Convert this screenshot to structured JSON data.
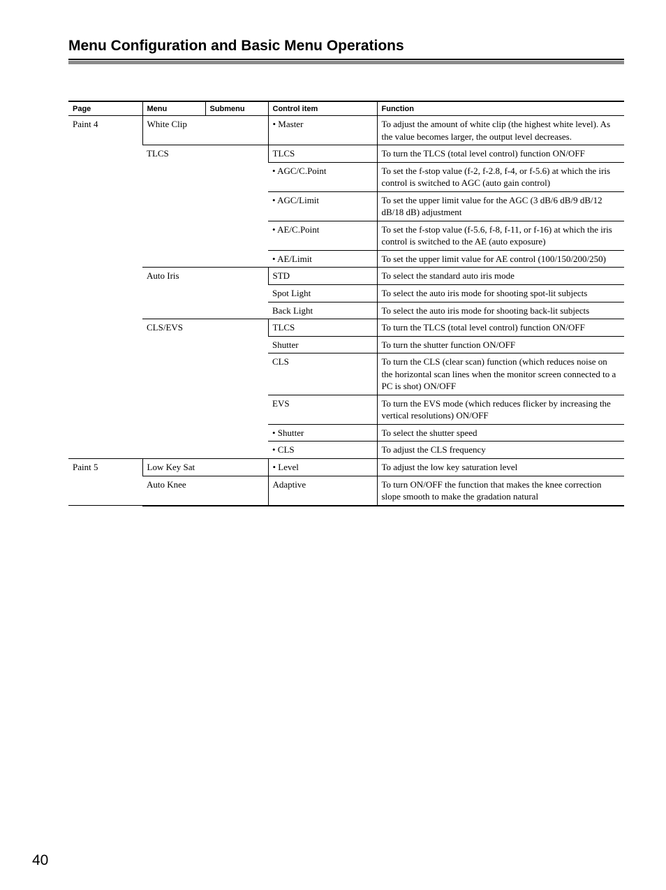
{
  "title": "Menu Configuration and Basic Menu Operations",
  "page_number": "40",
  "headers": {
    "page": "Page",
    "menu": "Menu",
    "submenu": "Submenu",
    "control": "Control item",
    "function": "Function"
  },
  "rows": [
    {
      "page": "Paint 4",
      "menu": "White Clip",
      "control": "• Master",
      "function": "To adjust the amount of white clip (the highest white level). As the value becomes larger, the output level decreases."
    },
    {
      "page": "",
      "menu": "TLCS",
      "control": "TLCS",
      "function": "To turn the TLCS (total level control) function ON/OFF"
    },
    {
      "page": "",
      "menu": "",
      "control": "• AGC/C.Point",
      "function": "To set the f-stop value (f-2, f-2.8, f-4, or f-5.6) at which the iris control is switched to AGC (auto gain control)"
    },
    {
      "page": "",
      "menu": "",
      "control": "• AGC/Limit",
      "function": "To set the upper limit value for the AGC (3 dB/6 dB/9 dB/12 dB/18 dB) adjustment"
    },
    {
      "page": "",
      "menu": "",
      "control": "• AE/C.Point",
      "function": "To set the f-stop value (f-5.6, f-8, f-11, or f-16) at which the iris control is switched to the AE (auto exposure)"
    },
    {
      "page": "",
      "menu": "",
      "control": "• AE/Limit",
      "function": "To set the upper limit value for AE control (100/150/200/250)"
    },
    {
      "page": "",
      "menu": "Auto Iris",
      "control": "STD",
      "function": "To select the standard auto iris mode"
    },
    {
      "page": "",
      "menu": "",
      "control": "Spot Light",
      "function": "To select the auto iris mode for shooting spot-lit subjects"
    },
    {
      "page": "",
      "menu": "",
      "control": "Back Light",
      "function": "To select the auto iris mode for shooting back-lit subjects"
    },
    {
      "page": "",
      "menu": "CLS/EVS",
      "control": "TLCS",
      "function": "To turn the TLCS (total level control) function ON/OFF"
    },
    {
      "page": "",
      "menu": "",
      "control": "Shutter",
      "function": "To turn the shutter function ON/OFF"
    },
    {
      "page": "",
      "menu": "",
      "control": "CLS",
      "function": "To turn the CLS (clear scan) function (which reduces noise on the horizontal scan lines when the monitor screen connected to a PC is shot) ON/OFF"
    },
    {
      "page": "",
      "menu": "",
      "control": "EVS",
      "function": "To turn the EVS mode (which reduces flicker by increasing the vertical resolutions) ON/OFF"
    },
    {
      "page": "",
      "menu": "",
      "control": "• Shutter",
      "function": "To select the shutter speed"
    },
    {
      "page": "",
      "menu": "",
      "control": "• CLS",
      "function": "To adjust the CLS frequency"
    },
    {
      "page": "Paint 5",
      "menu": "Low Key Sat",
      "control": "• Level",
      "function": "To adjust the low key saturation level"
    },
    {
      "page": "",
      "menu": "Auto Knee",
      "control": "Adaptive",
      "function": "To turn ON/OFF the function that makes the knee correction slope smooth to make the gradation natural"
    }
  ],
  "layout": {
    "page_groups": [
      {
        "start": 0,
        "span": 15
      },
      {
        "start": 15,
        "span": 2
      }
    ],
    "menu_groups": [
      {
        "start": 0,
        "span": 1
      },
      {
        "start": 1,
        "span": 5
      },
      {
        "start": 6,
        "span": 3
      },
      {
        "start": 9,
        "span": 6
      },
      {
        "start": 15,
        "span": 1
      },
      {
        "start": 16,
        "span": 1
      }
    ]
  },
  "colors": {
    "background": "#ffffff",
    "text": "#000000",
    "separator_bar": "#8a8a8a"
  }
}
